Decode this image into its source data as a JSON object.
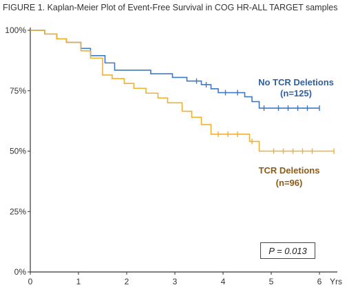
{
  "figure_title": "FIGURE 1. Kaplan-Meier Plot of Event-Free Survival in COG HR-ALL TARGET samples",
  "p_value_text": "P = 0.013",
  "chart_data": {
    "type": "line",
    "title": "FIGURE 1. Kaplan-Meier Plot of Event-Free Survival in COG HR-ALL TARGET samples",
    "xlabel": "Yrs",
    "ylabel": "",
    "xlim": [
      0,
      6.3
    ],
    "ylim": [
      0,
      100
    ],
    "x_ticks": [
      "0",
      "1",
      "2",
      "3",
      "4",
      "5",
      "6"
    ],
    "y_ticks": [
      "0%",
      "25%",
      "50%",
      "75%",
      "100%"
    ],
    "x_unit_label": "Yrs",
    "grid": false,
    "series": [
      {
        "name": "No TCR Deletions",
        "label_line1": "No TCR Deletions",
        "label_line2": "(n=125)",
        "color": "#3d78c4",
        "steps": [
          [
            0,
            100
          ],
          [
            0.3,
            98.5
          ],
          [
            0.55,
            96.5
          ],
          [
            0.75,
            95
          ],
          [
            1.05,
            92.5
          ],
          [
            1.25,
            89.5
          ],
          [
            1.55,
            86.5
          ],
          [
            1.75,
            83.5
          ],
          [
            2.5,
            82
          ],
          [
            2.95,
            80.5
          ],
          [
            3.25,
            79
          ],
          [
            3.55,
            77.5
          ],
          [
            3.75,
            75.8
          ],
          [
            3.9,
            74.2
          ],
          [
            4.45,
            72.5
          ],
          [
            4.6,
            70.5
          ],
          [
            4.75,
            67.8
          ],
          [
            6.0,
            67.8
          ]
        ],
        "censor_x": [
          3.45,
          3.65,
          4.05,
          4.3,
          4.85,
          5.15,
          5.35,
          5.55,
          5.75,
          6.0
        ]
      },
      {
        "name": "TCR Deletions",
        "label_line1": "TCR Deletions",
        "label_line2": "(n=96)",
        "color": "#f0b030",
        "steps": [
          [
            0,
            100
          ],
          [
            0.3,
            98.5
          ],
          [
            0.55,
            96.5
          ],
          [
            0.75,
            95
          ],
          [
            1.05,
            91.5
          ],
          [
            1.25,
            88.5
          ],
          [
            1.5,
            81.5
          ],
          [
            1.7,
            80
          ],
          [
            1.95,
            78
          ],
          [
            2.15,
            76
          ],
          [
            2.4,
            74
          ],
          [
            2.65,
            72
          ],
          [
            2.85,
            70
          ],
          [
            3.15,
            66.5
          ],
          [
            3.35,
            64
          ],
          [
            3.55,
            61
          ],
          [
            3.75,
            57
          ],
          [
            4.55,
            54
          ],
          [
            4.75,
            50
          ],
          [
            6.3,
            50
          ]
        ],
        "censor_x": [
          3.9,
          4.1,
          4.3,
          4.6,
          5.05,
          5.25,
          5.45,
          5.65,
          5.85,
          6.3
        ]
      }
    ],
    "annotation": "P = 0.013"
  }
}
